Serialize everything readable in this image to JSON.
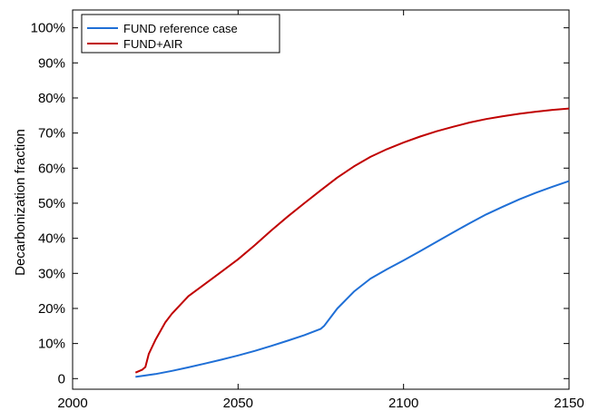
{
  "chart_data": {
    "type": "line",
    "title": "",
    "xlabel": "",
    "ylabel": "Decarbonization fraction",
    "xlim": [
      2000,
      2150
    ],
    "ylim": [
      0,
      1.0
    ],
    "x_ticks": [
      2000,
      2050,
      2100,
      2150
    ],
    "x_tick_labels": [
      "2000",
      "2050",
      "2100",
      "2150"
    ],
    "y_ticks": [
      0,
      0.1,
      0.2,
      0.3,
      0.4,
      0.5,
      0.6,
      0.7,
      0.8,
      0.9,
      1.0
    ],
    "y_tick_labels": [
      "0",
      "10%",
      "20%",
      "30%",
      "40%",
      "50%",
      "60%",
      "70%",
      "80%",
      "90%",
      "100%"
    ],
    "grid": false,
    "legend_position": "top-left",
    "series": [
      {
        "name": "FUND reference case",
        "color": "#1f6fd6",
        "x": [
          2019,
          2025,
          2030,
          2035,
          2040,
          2045,
          2050,
          2055,
          2060,
          2065,
          2070,
          2075,
          2076,
          2078,
          2080,
          2085,
          2090,
          2095,
          2100,
          2105,
          2110,
          2115,
          2120,
          2125,
          2130,
          2135,
          2140,
          2145,
          2150
        ],
        "y": [
          0.005,
          0.013,
          0.022,
          0.032,
          0.043,
          0.054,
          0.066,
          0.079,
          0.093,
          0.108,
          0.124,
          0.142,
          0.15,
          0.175,
          0.2,
          0.248,
          0.285,
          0.312,
          0.337,
          0.363,
          0.39,
          0.417,
          0.443,
          0.468,
          0.49,
          0.511,
          0.53,
          0.547,
          0.563
        ]
      },
      {
        "name": "FUND+AIR",
        "color": "#c00000",
        "x": [
          2019,
          2021,
          2022,
          2023,
          2025,
          2028,
          2030,
          2035,
          2040,
          2045,
          2050,
          2055,
          2060,
          2065,
          2070,
          2075,
          2080,
          2085,
          2090,
          2095,
          2100,
          2105,
          2110,
          2115,
          2120,
          2125,
          2130,
          2135,
          2140,
          2145,
          2150
        ],
        "y": [
          0.017,
          0.025,
          0.033,
          0.07,
          0.11,
          0.16,
          0.185,
          0.235,
          0.27,
          0.305,
          0.34,
          0.38,
          0.422,
          0.462,
          0.5,
          0.537,
          0.573,
          0.605,
          0.632,
          0.654,
          0.673,
          0.69,
          0.705,
          0.718,
          0.73,
          0.74,
          0.748,
          0.755,
          0.761,
          0.766,
          0.77
        ]
      }
    ]
  }
}
